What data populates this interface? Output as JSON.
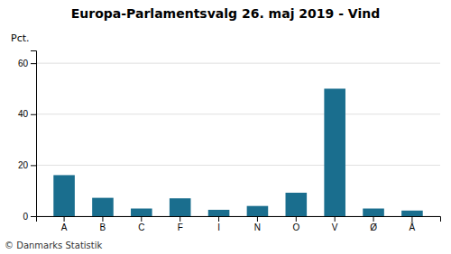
{
  "chart_data": {
    "type": "bar",
    "title": "Europa-Parlamentsvalg 26. maj 2019 - Vind",
    "ylabel": "Pct.",
    "annotations": [
      "© Danmarks Statistik"
    ],
    "categories": [
      "A",
      "B",
      "C",
      "F",
      "I",
      "N",
      "O",
      "V",
      "Ø",
      "Å"
    ],
    "values": [
      16.1,
      7.2,
      3.0,
      7.0,
      2.5,
      4.0,
      9.2,
      50.0,
      3.0,
      2.2
    ],
    "color": "#1a6e8e",
    "ylim": [
      0,
      65
    ],
    "yticks": [
      0,
      20,
      40,
      60
    ],
    "grid": true
  }
}
